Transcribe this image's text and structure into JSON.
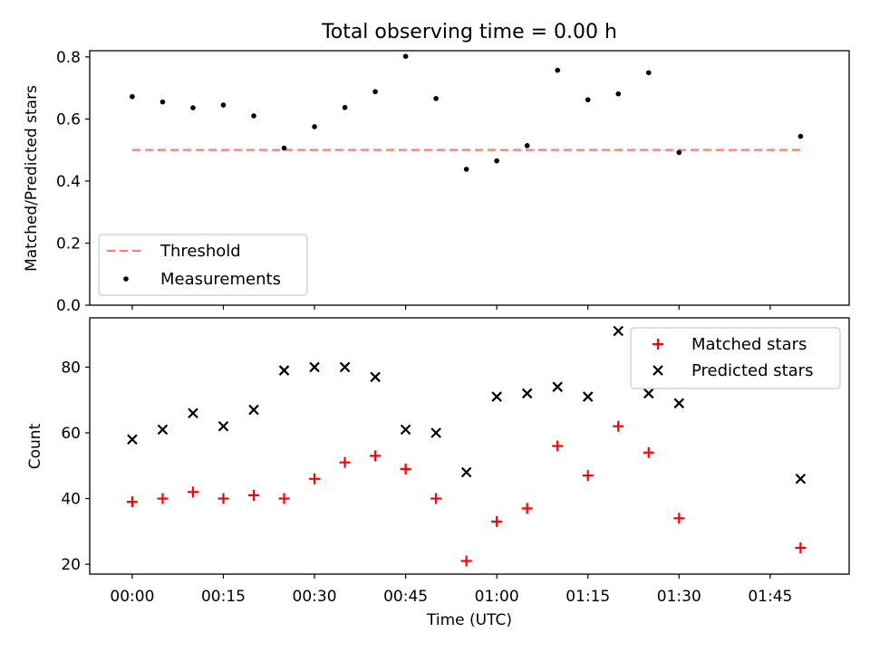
{
  "chart_data": [
    {
      "type": "scatter",
      "title": "Total observing time = 0.00 h",
      "xlabel": "",
      "ylabel": "Matched/Predicted stars",
      "xlim": [
        "23:53",
        "01:58"
      ],
      "ylim": [
        0,
        0.82
      ],
      "yticks": [
        "0.0",
        "0.2",
        "0.4",
        "0.6",
        "0.8"
      ],
      "legend_position": "lower-left",
      "threshold": {
        "name": "Threshold",
        "y": 0.5,
        "x_start": "00:00",
        "x_end": "01:50",
        "color": "#ff7a7a"
      },
      "series": [
        {
          "name": "Measurements",
          "color": "#000000",
          "marker": "dot",
          "x": [
            "00:00",
            "00:05",
            "00:10",
            "00:15",
            "00:20",
            "00:25",
            "00:30",
            "00:35",
            "00:40",
            "00:45",
            "00:50",
            "00:55",
            "01:00",
            "01:05",
            "01:10",
            "01:15",
            "01:20",
            "01:25",
            "01:30",
            "01:50"
          ],
          "values": [
            0.672,
            0.655,
            0.636,
            0.645,
            0.61,
            0.506,
            0.575,
            0.637,
            0.688,
            0.802,
            0.666,
            0.438,
            0.465,
            0.514,
            0.757,
            0.662,
            0.681,
            0.749,
            0.492,
            0.544
          ]
        }
      ]
    },
    {
      "type": "scatter",
      "title": "",
      "xlabel": "Time (UTC)",
      "ylabel": "Count",
      "xlim": [
        "23:53",
        "01:58"
      ],
      "ylim": [
        17,
        95
      ],
      "xticks": [
        "00:00",
        "00:15",
        "00:30",
        "00:45",
        "01:00",
        "01:15",
        "01:30",
        "01:45"
      ],
      "yticks": [
        "20",
        "40",
        "60",
        "80"
      ],
      "legend_position": "upper-right",
      "series": [
        {
          "name": "Matched stars",
          "color": "#ff0000",
          "marker": "plus",
          "x": [
            "00:00",
            "00:05",
            "00:10",
            "00:15",
            "00:20",
            "00:25",
            "00:30",
            "00:35",
            "00:40",
            "00:45",
            "00:50",
            "00:55",
            "01:00",
            "01:05",
            "01:10",
            "01:15",
            "01:20",
            "01:25",
            "01:30",
            "01:50"
          ],
          "values": [
            39,
            40,
            42,
            40,
            41,
            40,
            46,
            51,
            53,
            49,
            40,
            21,
            33,
            37,
            56,
            47,
            62,
            54,
            34,
            25
          ]
        },
        {
          "name": "Predicted stars",
          "color": "#000000",
          "marker": "x",
          "x": [
            "00:00",
            "00:05",
            "00:10",
            "00:15",
            "00:20",
            "00:25",
            "00:30",
            "00:35",
            "00:40",
            "00:45",
            "00:50",
            "00:55",
            "01:00",
            "01:05",
            "01:10",
            "01:15",
            "01:20",
            "01:25",
            "01:30",
            "01:50"
          ],
          "values": [
            58,
            61,
            66,
            62,
            67,
            79,
            80,
            80,
            77,
            61,
            60,
            48,
            71,
            72,
            74,
            71,
            91,
            72,
            69,
            46
          ]
        }
      ]
    }
  ]
}
